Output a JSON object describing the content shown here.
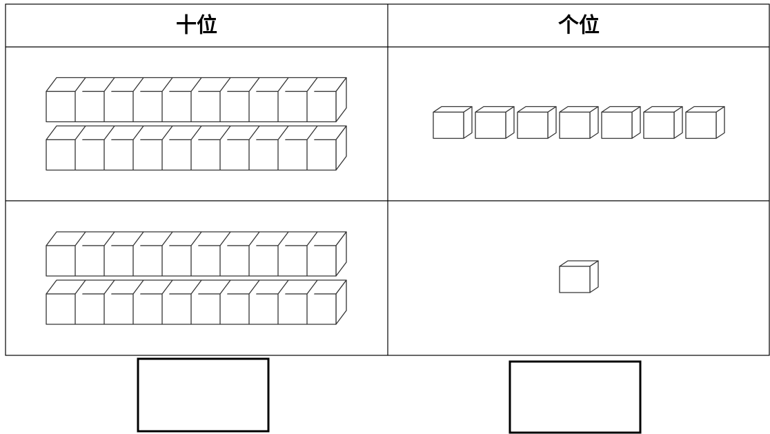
{
  "table": {
    "headers": [
      "十位",
      "个位"
    ],
    "rows": [
      {
        "tens": 2,
        "ones": 7
      },
      {
        "tens": 2,
        "ones": 1
      }
    ]
  }
}
